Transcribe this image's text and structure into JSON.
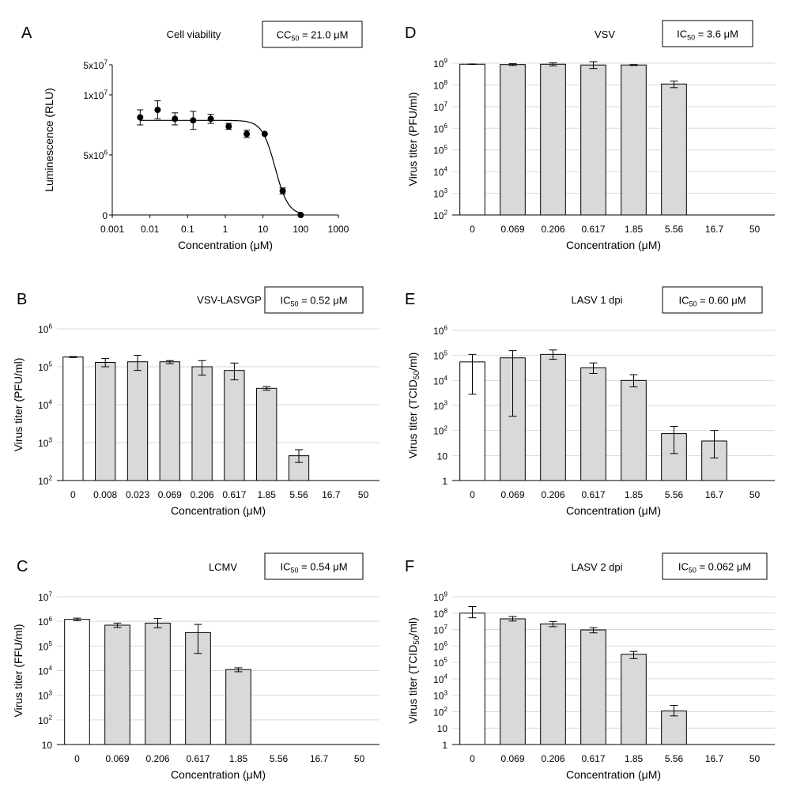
{
  "styles": {
    "bar_fill": "#d9d9d9",
    "control_fill": "#ffffff",
    "stroke": "#000000",
    "grid": "#d9d9d9"
  },
  "chart_data": [
    {
      "panel": "A",
      "type": "scatter",
      "title": "Cell viability",
      "stat": {
        "prefix": "CC",
        "sub": "50",
        "text": " = 21.0 μM"
      },
      "xlabel": "Concentration (μM)",
      "ylabel": "Luminescence (RLU)",
      "xscale": "log",
      "xlim": [
        0.001,
        1000
      ],
      "xticks": [
        0.001,
        0.01,
        0.1,
        1,
        10,
        100,
        1000
      ],
      "xtick_labels": [
        "0.001",
        "0.01",
        "0.1",
        "1",
        "10",
        "100",
        "1000"
      ],
      "ylim": [
        0,
        5
      ],
      "yticks": [
        0,
        2,
        4,
        5
      ],
      "ytick_labels": [
        {
          "b": "0",
          "e": ""
        },
        {
          "b": "5x10",
          "e": "6"
        },
        {
          "b": "1x10",
          "e": "7"
        },
        {
          "b": "5x10",
          "e": "7"
        }
      ],
      "points": [
        {
          "x": 0.0055,
          "y": 3.25,
          "err": 0.25
        },
        {
          "x": 0.016,
          "y": 3.5,
          "err": 0.3
        },
        {
          "x": 0.046,
          "y": 3.2,
          "err": 0.2
        },
        {
          "x": 0.14,
          "y": 3.15,
          "err": 0.3
        },
        {
          "x": 0.41,
          "y": 3.2,
          "err": 0.15
        },
        {
          "x": 1.23,
          "y": 2.95,
          "err": 0.1
        },
        {
          "x": 3.7,
          "y": 2.7,
          "err": 0.12
        },
        {
          "x": 11.1,
          "y": 2.7,
          "err": 0
        },
        {
          "x": 33.3,
          "y": 0.8,
          "err": 0.1
        },
        {
          "x": 100,
          "y": 0.0,
          "err": 0
        }
      ],
      "fit": {
        "top": 3.15,
        "bottom": 0,
        "ec50": 21.0,
        "hill": 2.5
      }
    },
    {
      "panel": "B",
      "type": "bar",
      "title": "VSV-LASVGP",
      "stat": {
        "prefix": "IC",
        "sub": "50",
        "text": " = 0.52 μM"
      },
      "xlabel": "Concentration (μM)",
      "ylabel": "Virus titer (PFU/ml)",
      "yscale": "log",
      "ylim_exp": [
        2,
        6
      ],
      "ytick_labels": [
        {
          "b": "10",
          "e": "2"
        },
        {
          "b": "10",
          "e": "3"
        },
        {
          "b": "10",
          "e": "4"
        },
        {
          "b": "10",
          "e": "5"
        },
        {
          "b": "10",
          "e": "6"
        }
      ],
      "categories": [
        "0",
        "0.008",
        "0.023",
        "0.069",
        "0.206",
        "0.617",
        "1.85",
        "5.56",
        "16.7",
        "50"
      ],
      "values": [
        180000,
        130000,
        135000,
        135000,
        100000,
        80000,
        27000,
        450,
        0,
        0
      ],
      "err_low": [
        175000,
        100000,
        80000,
        120000,
        60000,
        45000,
        24000,
        300,
        null,
        null
      ],
      "err_high": [
        185000,
        165000,
        200000,
        145000,
        145000,
        125000,
        30000,
        650,
        null,
        null
      ]
    },
    {
      "panel": "C",
      "type": "bar",
      "title": "LCMV",
      "stat": {
        "prefix": "IC",
        "sub": "50",
        "text": " = 0.54 μM"
      },
      "xlabel": "Concentration (μM)",
      "ylabel": "Virus titer (FFU/ml)",
      "yscale": "log",
      "ylim_exp": [
        1,
        7
      ],
      "ytick_labels": [
        {
          "b": "10",
          "e": ""
        },
        {
          "b": "10",
          "e": "2"
        },
        {
          "b": "10",
          "e": "3"
        },
        {
          "b": "10",
          "e": "4"
        },
        {
          "b": "10",
          "e": "5"
        },
        {
          "b": "10",
          "e": "6"
        },
        {
          "b": "10",
          "e": "7"
        }
      ],
      "categories": [
        "0",
        "0.069",
        "0.206",
        "0.617",
        "1.85",
        "5.56",
        "16.7",
        "50"
      ],
      "values": [
        1200000,
        700000,
        850000,
        350000,
        11000,
        0,
        0,
        0
      ],
      "err_low": [
        1050000,
        570000,
        550000,
        50000,
        9000,
        null,
        null,
        null
      ],
      "err_high": [
        1350000,
        850000,
        1300000,
        750000,
        13000,
        null,
        null,
        null
      ]
    },
    {
      "panel": "D",
      "type": "bar",
      "title": "VSV",
      "stat": {
        "prefix": "IC",
        "sub": "50",
        "text": " = 3.6 μM"
      },
      "xlabel": "Concentration (μM)",
      "ylabel": "Virus titer (PFU/ml)",
      "yscale": "log",
      "ylim_exp": [
        2,
        9
      ],
      "ytick_labels": [
        {
          "b": "10",
          "e": "2"
        },
        {
          "b": "10",
          "e": "3"
        },
        {
          "b": "10",
          "e": "4"
        },
        {
          "b": "10",
          "e": "5"
        },
        {
          "b": "10",
          "e": "6"
        },
        {
          "b": "10",
          "e": "7"
        },
        {
          "b": "10",
          "e": "8"
        },
        {
          "b": "10",
          "e": "9"
        }
      ],
      "categories": [
        "0",
        "0.069",
        "0.206",
        "0.617",
        "1.85",
        "5.56",
        "16.7",
        "50"
      ],
      "values": [
        900000000,
        870000000,
        900000000,
        830000000,
        830000000,
        110000000,
        0,
        0
      ],
      "err_low": [
        880000000,
        790000000,
        760000000,
        570000000,
        790000000,
        75000000,
        null,
        null
      ],
      "err_high": [
        920000000,
        950000000,
        1040000000,
        1180000000,
        870000000,
        150000000,
        null,
        null
      ]
    },
    {
      "panel": "E",
      "type": "bar",
      "title": "LASV 1 dpi",
      "stat": {
        "prefix": "IC",
        "sub": "50",
        "text": " = 0.60 μM"
      },
      "xlabel": "Concentration (μM)",
      "ylabel": "Virus titer (TCID",
      "ylabel_sub": "50",
      "ylabel_tail": "/ml)",
      "yscale": "log",
      "ylim_exp": [
        0,
        6
      ],
      "ytick_labels": [
        {
          "b": "1",
          "e": ""
        },
        {
          "b": "10",
          "e": ""
        },
        {
          "b": "10",
          "e": "2"
        },
        {
          "b": "10",
          "e": "3"
        },
        {
          "b": "10",
          "e": "4"
        },
        {
          "b": "10",
          "e": "5"
        },
        {
          "b": "10",
          "e": "6"
        }
      ],
      "categories": [
        "0",
        "0.069",
        "0.206",
        "0.617",
        "1.85",
        "5.56",
        "16.7",
        "50"
      ],
      "values": [
        55000,
        80000,
        110000,
        32000,
        10000,
        75,
        38,
        0
      ],
      "err_low": [
        2800,
        370,
        70000,
        19000,
        5500,
        12,
        8,
        null
      ],
      "err_high": [
        110000,
        155000,
        165000,
        50000,
        17000,
        145,
        100,
        null
      ]
    },
    {
      "panel": "F",
      "type": "bar",
      "title": "LASV 2 dpi",
      "stat": {
        "prefix": "IC",
        "sub": "50",
        "text": " = 0.062 μM"
      },
      "xlabel": "Concentration (μM)",
      "ylabel": "Virus titer (TCID",
      "ylabel_sub": "50",
      "ylabel_tail": "/ml)",
      "yscale": "log",
      "ylim_exp": [
        0,
        9
      ],
      "ytick_labels": [
        {
          "b": "1",
          "e": ""
        },
        {
          "b": "10",
          "e": ""
        },
        {
          "b": "10",
          "e": "2"
        },
        {
          "b": "10",
          "e": "3"
        },
        {
          "b": "10",
          "e": "4"
        },
        {
          "b": "10",
          "e": "5"
        },
        {
          "b": "10",
          "e": "6"
        },
        {
          "b": "10",
          "e": "7"
        },
        {
          "b": "10",
          "e": "8"
        },
        {
          "b": "10",
          "e": "9"
        }
      ],
      "categories": [
        "0",
        "0.069",
        "0.206",
        "0.617",
        "1.85",
        "5.56",
        "16.7",
        "50"
      ],
      "values": [
        100000000,
        45000000,
        22000000,
        9500000,
        310000,
        110,
        0,
        0
      ],
      "err_low": [
        52000000,
        33000000,
        15000000,
        6300000,
        170000,
        55,
        null,
        null
      ],
      "err_high": [
        250000000,
        62000000,
        31000000,
        13000000,
        470000,
        240,
        null,
        null
      ]
    }
  ]
}
